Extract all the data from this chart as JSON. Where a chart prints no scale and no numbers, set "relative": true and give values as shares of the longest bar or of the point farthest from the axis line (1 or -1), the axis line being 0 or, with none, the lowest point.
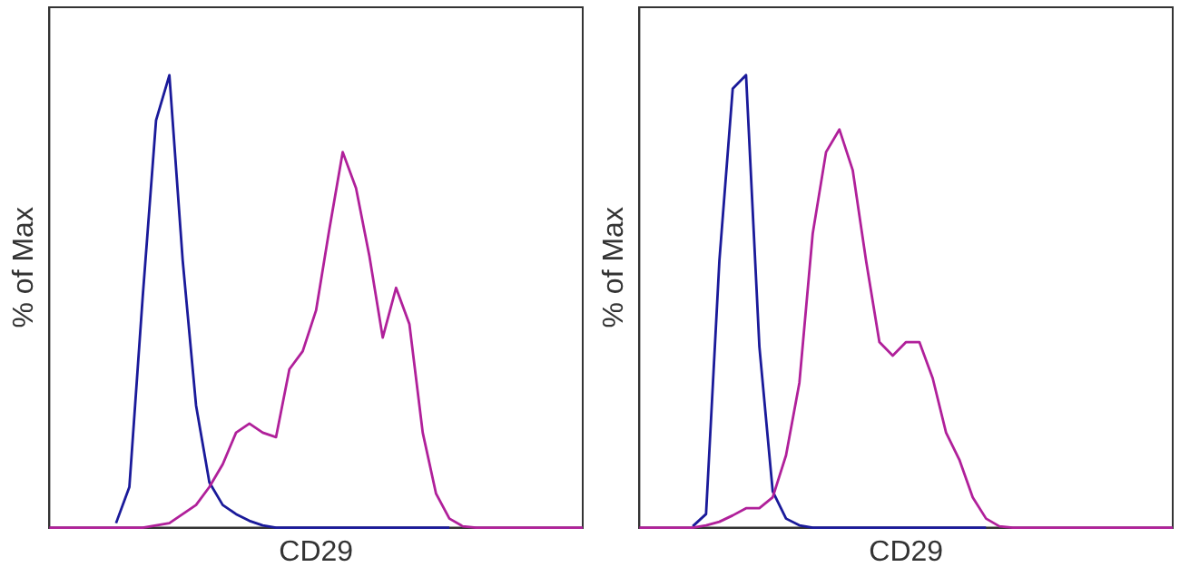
{
  "chart_data": [
    {
      "type": "line",
      "relative": true,
      "xlabel": "CD29",
      "ylabel": "% of Max",
      "tick_labels": false,
      "grid": false,
      "legend": false,
      "marker": "none",
      "categories": [
        null,
        null,
        null,
        null,
        null,
        null,
        null,
        null,
        null,
        null,
        null,
        null,
        null,
        null,
        null,
        null,
        null,
        null,
        null,
        null,
        null,
        null,
        null,
        null,
        null,
        null,
        null,
        null,
        null,
        null,
        null,
        null,
        null,
        null,
        null,
        null,
        null,
        null,
        null,
        null,
        null
      ],
      "series": [
        {
          "color": "#1a1a9a",
          "values": [
            null,
            null,
            null,
            null,
            null,
            0.01,
            0.09,
            0.51,
            0.9,
            1,
            0.59,
            0.27,
            0.1,
            0.05,
            0.03,
            0.015,
            0.005,
            0,
            0,
            0,
            0,
            0,
            0,
            0,
            0,
            0,
            0,
            0,
            0,
            0,
            0,
            null,
            null,
            null,
            null,
            null,
            null,
            null,
            null,
            null,
            null
          ]
        },
        {
          "color": "#b0209a",
          "values": [
            0,
            0,
            0,
            0,
            0,
            0,
            0,
            0,
            0.005,
            0.01,
            0.03,
            0.05,
            0.09,
            0.14,
            0.21,
            0.23,
            0.21,
            0.2,
            0.35,
            0.39,
            0.48,
            0.66,
            0.83,
            0.75,
            0.6,
            0.42,
            0.53,
            0.45,
            0.21,
            0.075,
            0.02,
            0.003,
            0,
            0,
            0,
            0,
            0,
            0,
            0,
            0,
            0
          ]
        }
      ]
    },
    {
      "type": "line",
      "relative": true,
      "xlabel": "CD29",
      "ylabel": "% of Max",
      "tick_labels": false,
      "grid": false,
      "legend": false,
      "marker": "none",
      "categories": [
        null,
        null,
        null,
        null,
        null,
        null,
        null,
        null,
        null,
        null,
        null,
        null,
        null,
        null,
        null,
        null,
        null,
        null,
        null,
        null,
        null,
        null,
        null,
        null,
        null,
        null,
        null,
        null,
        null,
        null,
        null,
        null,
        null,
        null,
        null,
        null,
        null,
        null,
        null,
        null,
        null
      ],
      "series": [
        {
          "color": "#1a1a9a",
          "values": [
            null,
            null,
            null,
            null,
            0.003,
            0.03,
            0.59,
            0.97,
            1,
            0.4,
            0.08,
            0.02,
            0.005,
            0,
            0,
            0,
            0,
            0,
            0,
            0,
            0,
            0,
            0,
            0,
            0,
            0,
            0,
            null,
            null,
            null,
            null,
            null,
            null,
            null,
            null,
            null,
            null,
            null,
            null,
            null,
            null
          ]
        },
        {
          "color": "#b0209a",
          "values": [
            0,
            0,
            0,
            0,
            0,
            0.005,
            0.013,
            0.027,
            0.043,
            0.043,
            0.067,
            0.16,
            0.32,
            0.65,
            0.83,
            0.88,
            0.79,
            0.59,
            0.41,
            0.38,
            0.41,
            0.41,
            0.33,
            0.21,
            0.15,
            0.067,
            0.02,
            0.003,
            0,
            0,
            0,
            0,
            0,
            0,
            0,
            0,
            0,
            0,
            0,
            0,
            0
          ]
        }
      ]
    }
  ]
}
